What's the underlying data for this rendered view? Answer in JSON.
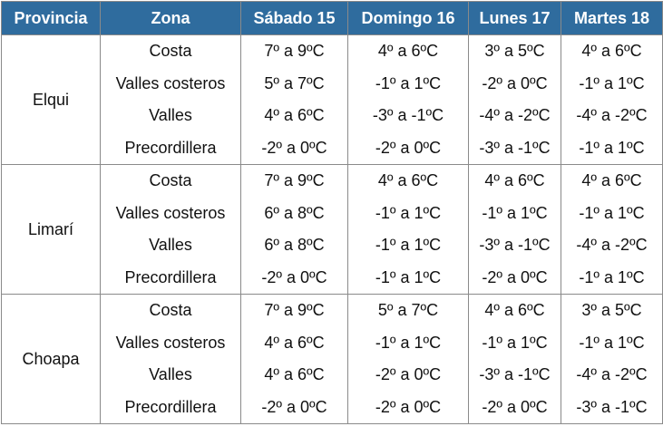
{
  "table": {
    "headers": [
      "Provincia",
      "Zona",
      "Sábado 15",
      "Domingo 16",
      "Lunes 17",
      "Martes 18"
    ],
    "groups": [
      {
        "province": "Elqui",
        "rows": [
          [
            "Costa",
            "7º a 9ºC",
            "4º a 6ºC",
            "3º a 5ºC",
            "4º a 6ºC"
          ],
          [
            "Valles costeros",
            "5º a 7ºC",
            "-1º a 1ºC",
            "-2º a 0ºC",
            "-1º a 1ºC"
          ],
          [
            "Valles",
            "4º a 6ºC",
            "-3º a -1ºC",
            "-4º a -2ºC",
            "-4º a -2ºC"
          ],
          [
            "Precordillera",
            "-2º a 0ºC",
            "-2º a 0ºC",
            "-3º a -1ºC",
            "-1º a 1ºC"
          ]
        ]
      },
      {
        "province": "Limarí",
        "rows": [
          [
            "Costa",
            "7º a 9ºC",
            "4º a 6ºC",
            "4º a 6ºC",
            "4º a 6ºC"
          ],
          [
            "Valles costeros",
            "6º a 8ºC",
            "-1º a 1ºC",
            "-1º a 1ºC",
            "-1º a 1ºC"
          ],
          [
            "Valles",
            "6º a 8ºC",
            "-1º a 1ºC",
            "-3º a -1ºC",
            "-4º a -2ºC"
          ],
          [
            "Precordillera",
            "-2º a 0ºC",
            "-1º a 1ºC",
            "-2º a 0ºC",
            "-1º a 1ºC"
          ]
        ]
      },
      {
        "province": "Choapa",
        "rows": [
          [
            "Costa",
            "7º a 9ºC",
            "5º a 7ºC",
            "4º a 6ºC",
            "3º a 5ºC"
          ],
          [
            "Valles costeros",
            "4º a 6ºC",
            "-1º a 1ºC",
            "-1º a 1ºC",
            "-1º a 1ºC"
          ],
          [
            "Valles",
            "4º a 6ºC",
            "-2º a 0ºC",
            "-3º a -1ºC",
            "-4º a -2ºC"
          ],
          [
            "Precordillera",
            "-2º a 0ºC",
            "-2º a 0ºC",
            "-2º a 0ºC",
            "-3º a -1ºC"
          ]
        ]
      }
    ]
  }
}
